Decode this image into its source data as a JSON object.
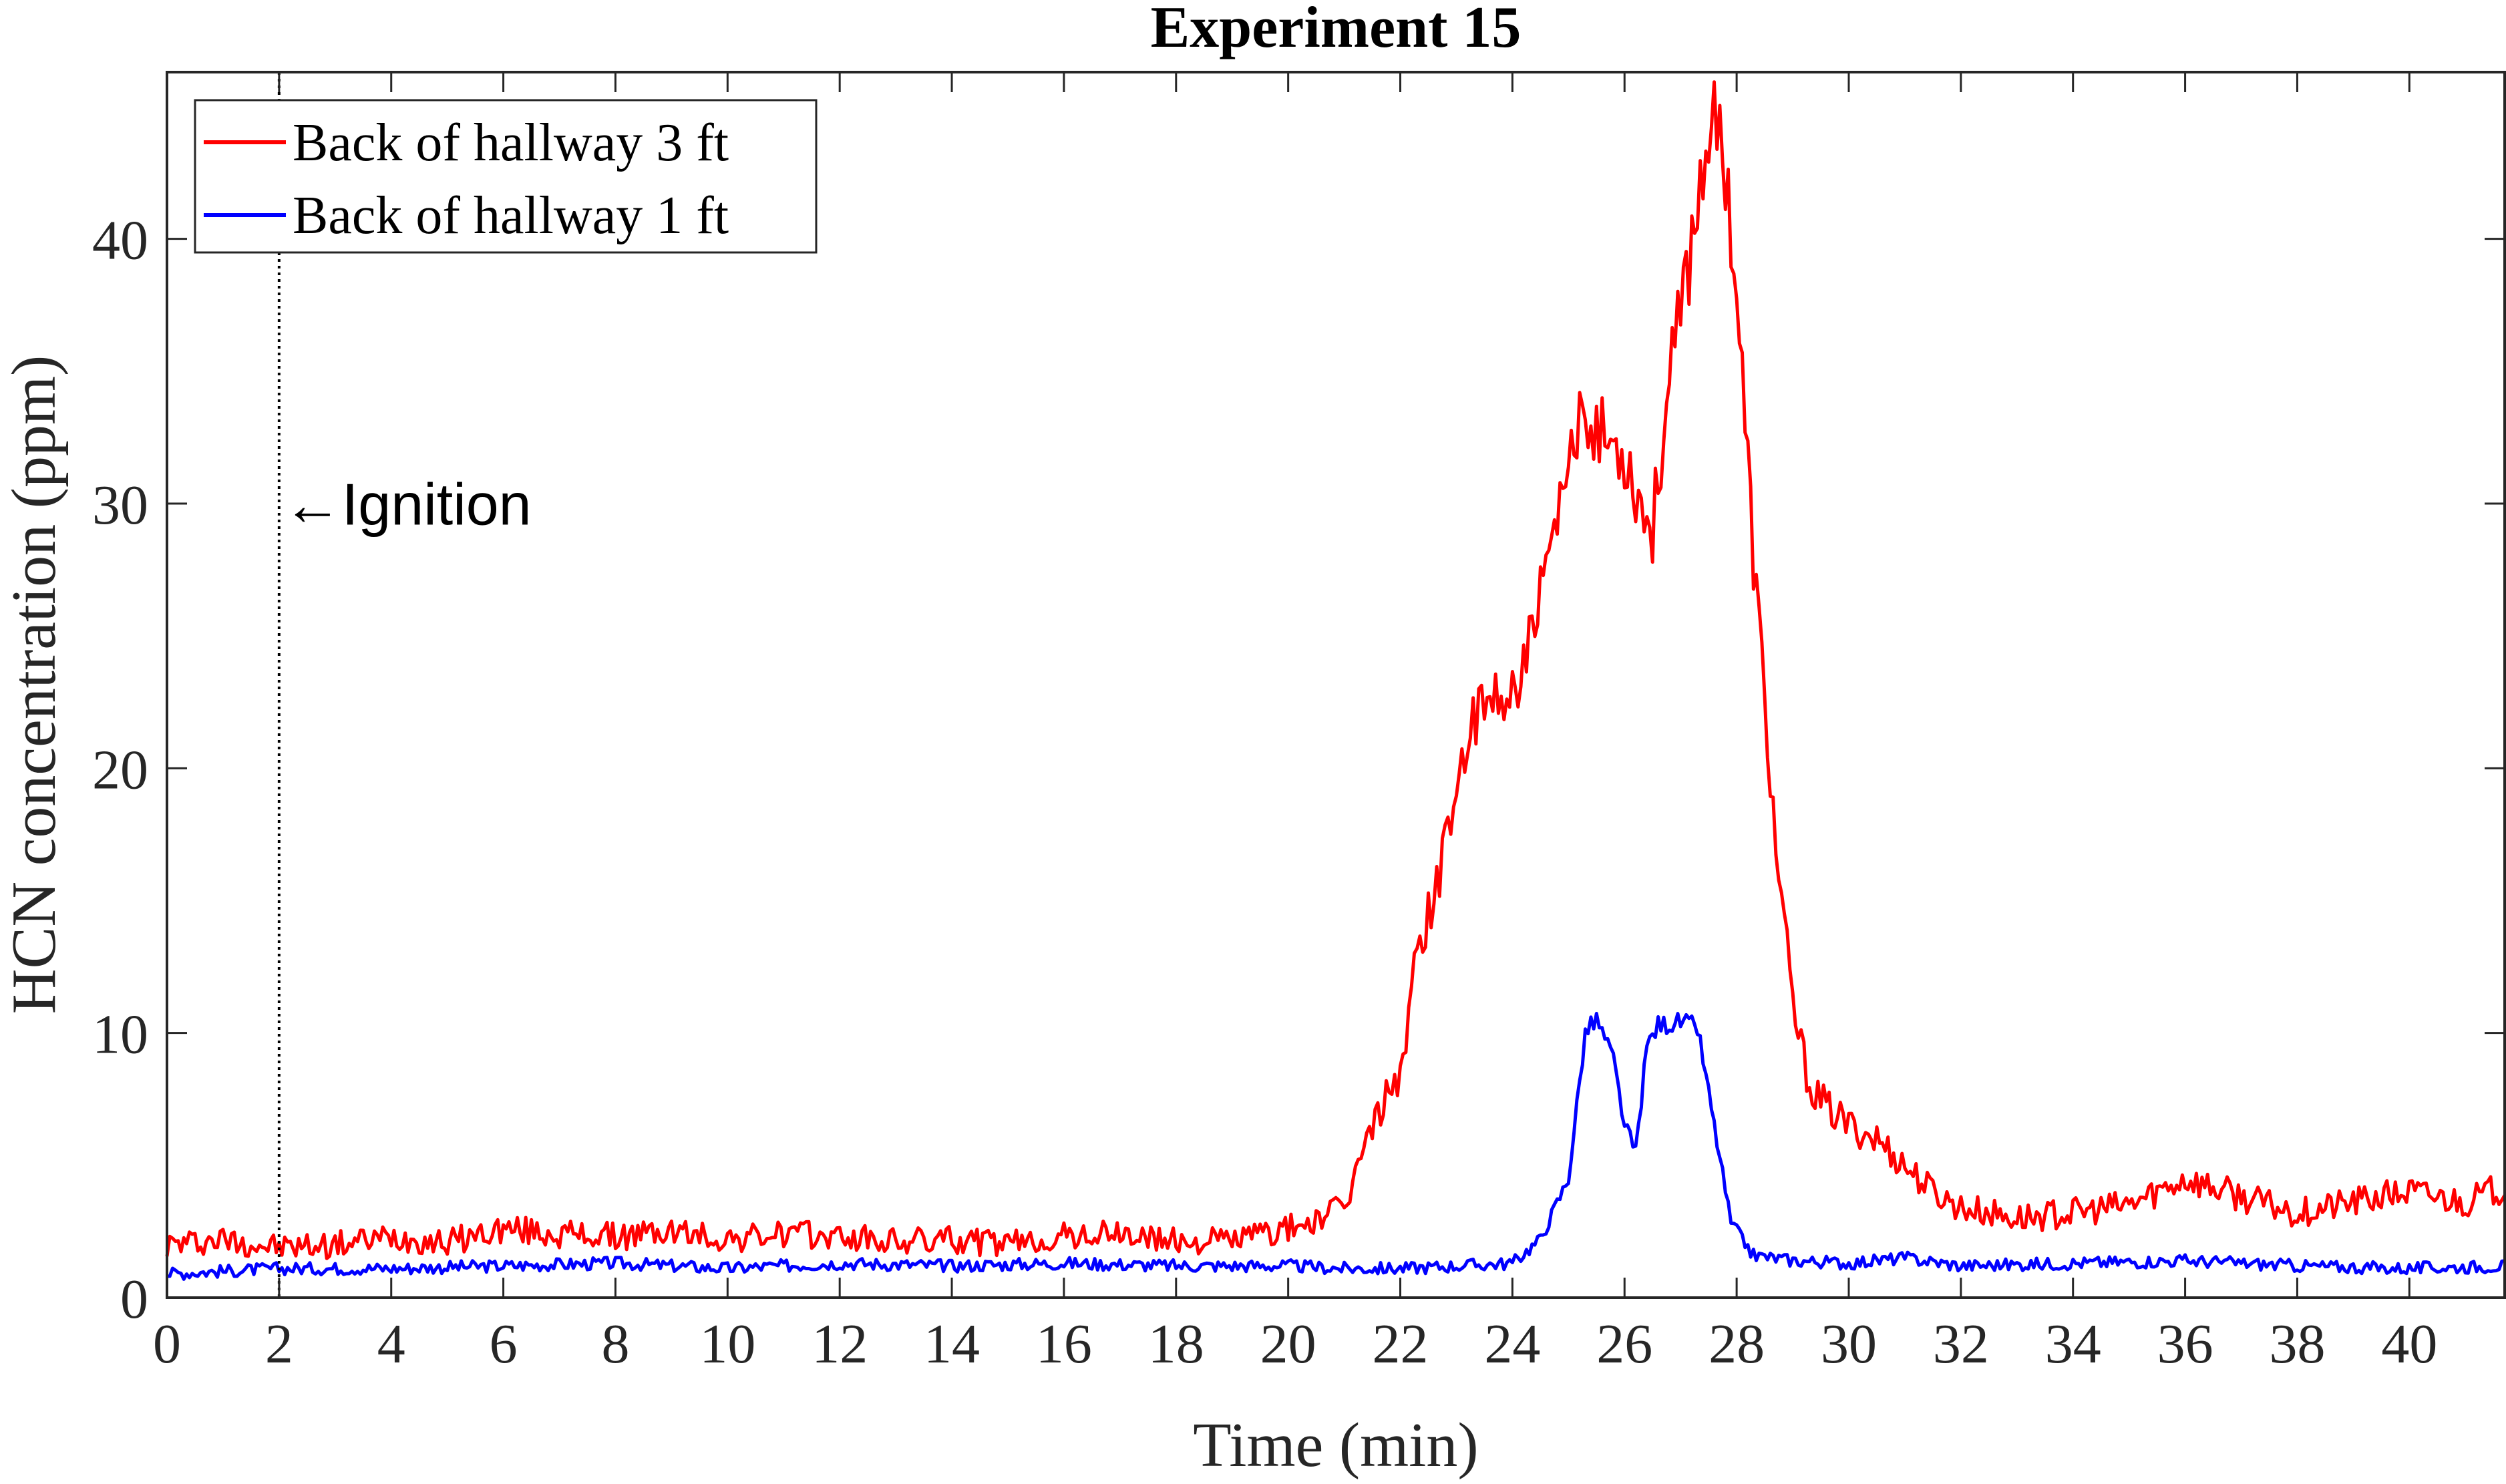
{
  "chart_data": {
    "type": "line",
    "title": "Experiment 15",
    "xlabel": "Time (min)",
    "ylabel": "HCN concentration (ppm)",
    "xlim": [
      0,
      41.7
    ],
    "ylim": [
      0,
      46.3
    ],
    "xticks": [
      0,
      2,
      4,
      6,
      8,
      10,
      12,
      14,
      16,
      18,
      20,
      22,
      24,
      26,
      28,
      30,
      32,
      34,
      36,
      38,
      40
    ],
    "yticks": [
      0,
      10,
      20,
      30,
      40
    ],
    "grid": false,
    "legend_position": "top-left",
    "annotation": {
      "text": "Ignition",
      "x": 2,
      "arrow": "←"
    },
    "series": [
      {
        "name": "Back of hallway 3 ft",
        "color": "#ff0000",
        "x": [
          0,
          1,
          2,
          3,
          4,
          5,
          6,
          7,
          8,
          9,
          10,
          11,
          12,
          13,
          14,
          15,
          16,
          17,
          18,
          19,
          20,
          20.5,
          21,
          21.3,
          21.6,
          22,
          22.3,
          22.7,
          23,
          23.3,
          23.6,
          24,
          24.3,
          24.7,
          25,
          25.3,
          25.6,
          26,
          26.3,
          26.5,
          26.7,
          27,
          27.2,
          27.5,
          27.8,
          28,
          28.3,
          28.7,
          29,
          29.3,
          29.6,
          30,
          30.5,
          31,
          31.5,
          32,
          33,
          34,
          35,
          36,
          37,
          38,
          39,
          40,
          41,
          41.7
        ],
        "y": [
          2,
          2.2,
          1.9,
          2,
          2.3,
          2.1,
          2.6,
          2.4,
          2.3,
          2.5,
          2.2,
          2.4,
          2.3,
          2.1,
          2.2,
          2,
          2.3,
          2.4,
          2.1,
          2.2,
          2.6,
          2.9,
          3.4,
          5.3,
          7,
          8.5,
          13,
          16,
          19.5,
          21.5,
          22.5,
          23,
          24.5,
          28,
          31,
          34,
          32.5,
          32,
          30,
          29,
          33,
          37,
          40,
          44.5,
          43,
          38,
          28,
          17,
          11,
          8,
          7.2,
          6.5,
          6,
          5,
          4,
          3.4,
          3,
          3.2,
          3.5,
          4.5,
          3.8,
          3.2,
          3.6,
          4,
          3.6,
          4.2
        ]
      },
      {
        "name": "Back of hallway 1 ft",
        "color": "#0000ff",
        "x": [
          0,
          2,
          4,
          6,
          8,
          10,
          12,
          14,
          16,
          18,
          20,
          21,
          22,
          23,
          24,
          24.5,
          25,
          25.3,
          25.5,
          25.8,
          26,
          26.2,
          26.4,
          26.6,
          27,
          27.3,
          27.6,
          27.9,
          28.3,
          29,
          30,
          31,
          32,
          34,
          36,
          38,
          40,
          41.7
        ],
        "y": [
          0.9,
          1.1,
          1.1,
          1.2,
          1.3,
          1.1,
          1.3,
          1.2,
          1.3,
          1.2,
          1.2,
          1.1,
          1.1,
          1.2,
          1.3,
          2.2,
          4.5,
          10,
          10.5,
          9,
          6.5,
          5.5,
          9.5,
          10.3,
          10.4,
          10.2,
          6.5,
          2.8,
          1.6,
          1.4,
          1.3,
          1.5,
          1.2,
          1.3,
          1.4,
          1.2,
          1.1,
          1.2
        ]
      }
    ]
  }
}
